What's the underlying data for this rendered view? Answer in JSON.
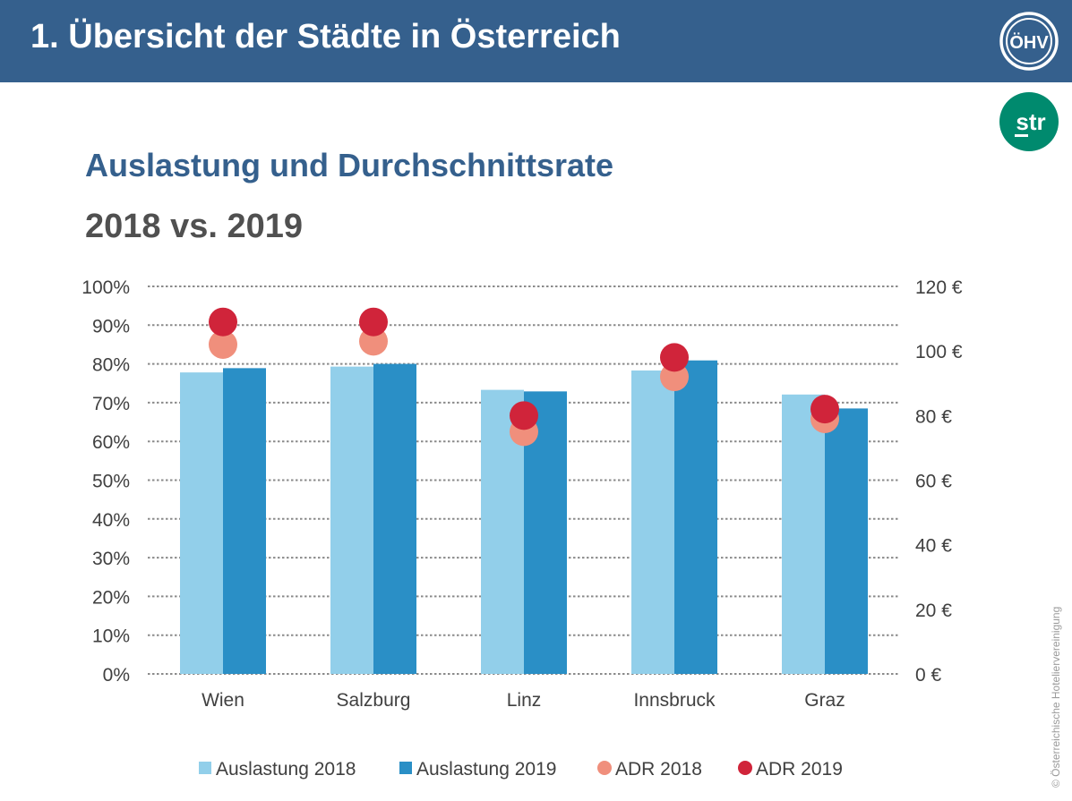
{
  "header": {
    "title": "1. Übersicht der Städte in Österreich",
    "logo_text": "ÖHV"
  },
  "str_logo": {
    "text": "str"
  },
  "subtitle": "Auslastung und Durchschnittsrate",
  "subtitle2": "2018 vs. 2019",
  "copyright": "© Österreichische Hoteliervereinigung",
  "colors": {
    "header_bg": "#35608d",
    "occ2018": "#92cfea",
    "occ2019": "#2a8fc6",
    "adr2018": "#f08f7c",
    "adr2019": "#d0243a",
    "str_green": "#008a6e"
  },
  "chart_data": {
    "type": "bar",
    "categories": [
      "Wien",
      "Salzburg",
      "Linz",
      "Innsbruck",
      "Graz"
    ],
    "series": [
      {
        "name": "Auslastung 2018",
        "kind": "bar",
        "axis": "left",
        "values": [
          77.8,
          79.3,
          73.3,
          78.3,
          72.1
        ]
      },
      {
        "name": "Auslastung 2019",
        "kind": "bar",
        "axis": "left",
        "values": [
          78.9,
          80.0,
          72.9,
          80.9,
          68.5
        ]
      },
      {
        "name": "ADR 2018",
        "kind": "dot",
        "axis": "right",
        "values": [
          102,
          103,
          75,
          92,
          79
        ]
      },
      {
        "name": "ADR 2019",
        "kind": "dot",
        "axis": "right",
        "values": [
          109,
          109,
          80,
          98,
          82
        ]
      }
    ],
    "y_left": {
      "range": [
        0,
        100
      ],
      "ticks": [
        "0%",
        "10%",
        "20%",
        "30%",
        "40%",
        "50%",
        "60%",
        "70%",
        "80%",
        "90%",
        "100%"
      ]
    },
    "y_right": {
      "range": [
        0,
        120
      ],
      "ticks": [
        "0 €",
        "20 €",
        "40 €",
        "60 €",
        "80 €",
        "100 €",
        "120 €"
      ]
    },
    "grid": true,
    "legend_position": "bottom"
  }
}
